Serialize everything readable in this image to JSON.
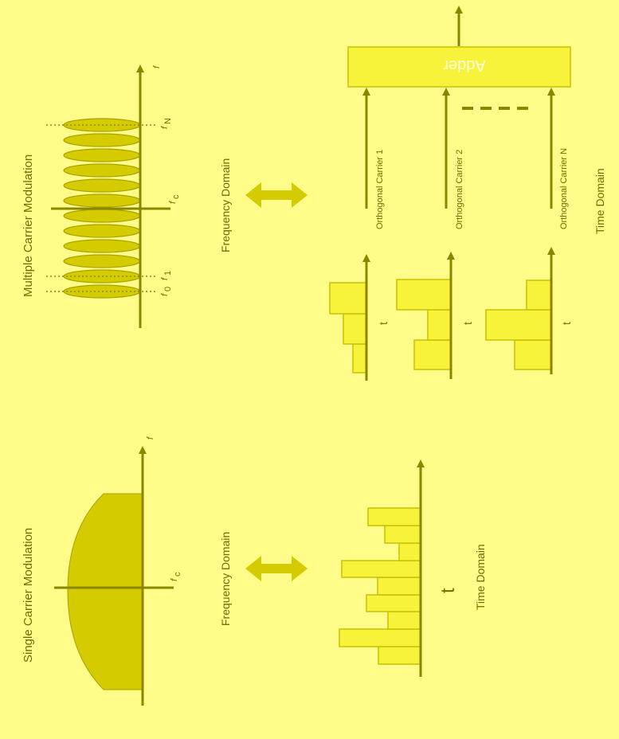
{
  "single": {
    "title": "Single Carrier Modulation",
    "f_label": "f",
    "fc_label": "f",
    "fc_sub": "c",
    "freq_domain": "Frequency Domain",
    "time_domain": "Time Domain",
    "t_label": "t"
  },
  "multiple": {
    "title": "Multiple Carrier Modulation",
    "f_label": "f",
    "f0": "f",
    "f0_sub": "0",
    "f1": "f",
    "f1_sub": "1",
    "fc": "f",
    "fc_sub": "c",
    "fn": "f",
    "fn_sub": "N",
    "freq_domain": "Frequency Domain",
    "time_domain": "Time Domain",
    "t_label": "t",
    "adder": "Adder",
    "carriers": [
      "Orthogonal Carrier 1",
      "Orthogonal Carrier 2",
      "Orthogonal Carrier N"
    ]
  },
  "colors": {
    "background": "#fffc8a",
    "dark": "#8a8600",
    "fill_dark": "#d4cc00",
    "fill_light": "#f7f23a",
    "text": "#6f6d00"
  }
}
